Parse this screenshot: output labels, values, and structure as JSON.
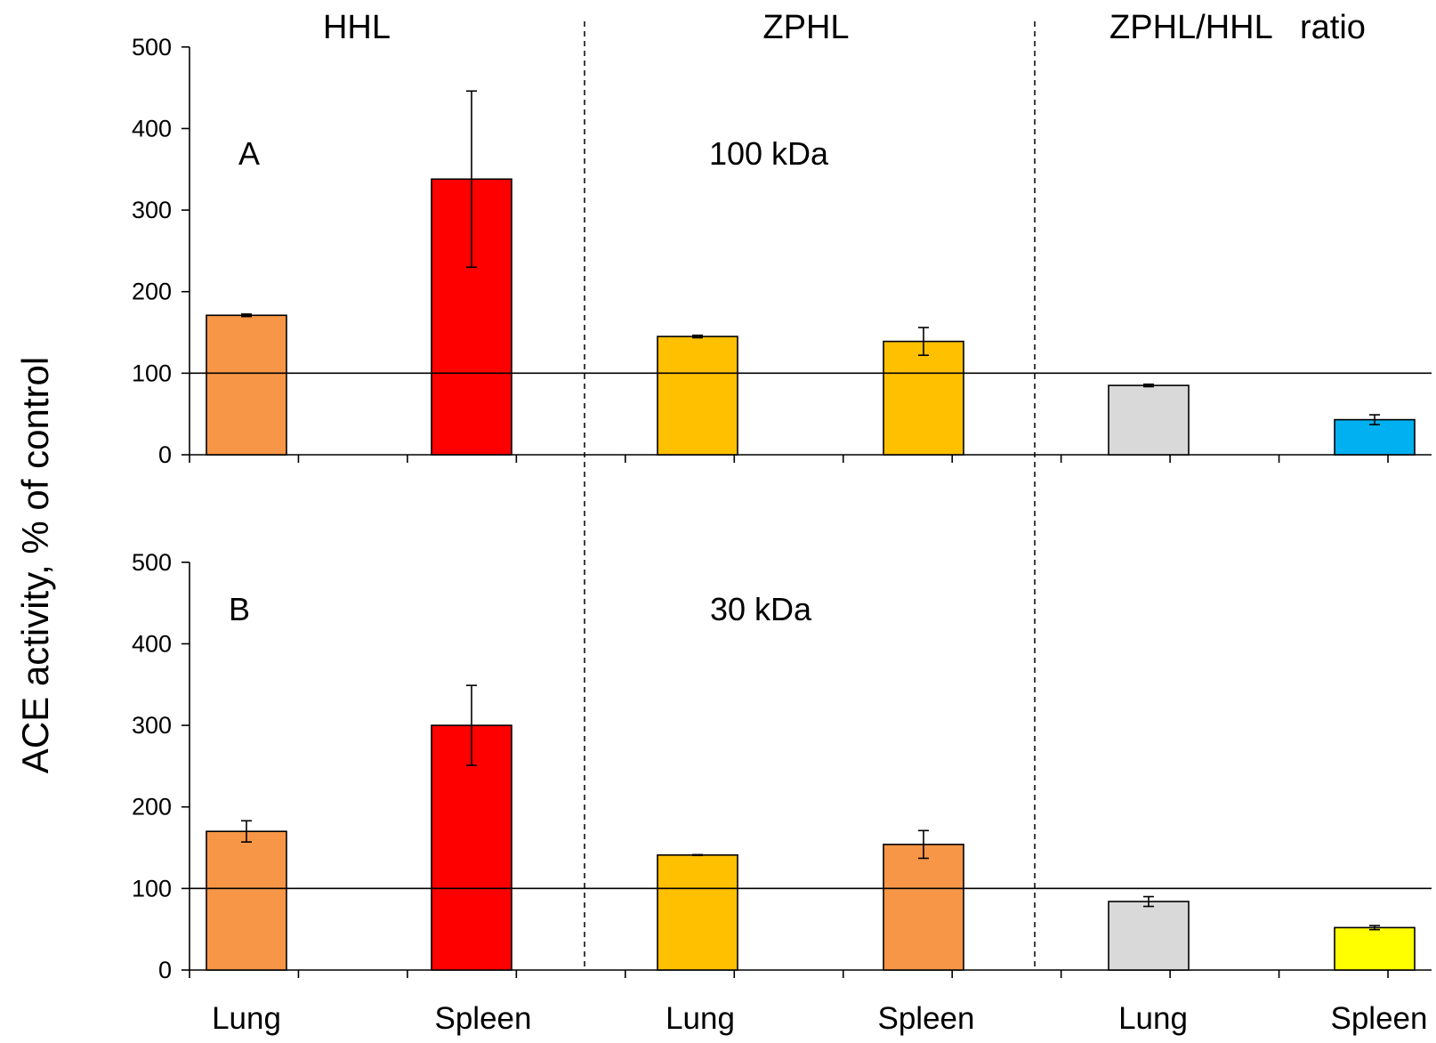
{
  "chart_data": {
    "type": "bar",
    "ylabel": "ACE activity, % of control",
    "group_labels": [
      "HHL",
      "ZPHL",
      "ZPHL/HHL   ratio"
    ],
    "categories": [
      "Lung",
      "Spleen",
      "Lung",
      "Spleen",
      "Lung",
      "Spleen"
    ],
    "ylim": [
      0,
      500
    ],
    "yticks": [
      0,
      100,
      200,
      300,
      400,
      500
    ],
    "reference_line": 100,
    "grid": false,
    "panels": [
      {
        "label": "A",
        "annotation": "100 kDa",
        "values": [
          171,
          338,
          145,
          139,
          85,
          43
        ],
        "errors": [
          1.5,
          108,
          1.5,
          17,
          1.5,
          6
        ],
        "colors": [
          "#f79646",
          "#ff0000",
          "#ffc000",
          "#ffc000",
          "#d9d9d9",
          "#00b0f0"
        ]
      },
      {
        "label": "B",
        "annotation": "30 kDa",
        "values": [
          170,
          300,
          141,
          154,
          84,
          52
        ],
        "errors": [
          13,
          49,
          0.5,
          17,
          6,
          2.5
        ],
        "colors": [
          "#f79646",
          "#ff0000",
          "#ffc000",
          "#f79646",
          "#d9d9d9",
          "#ffff00"
        ]
      }
    ]
  }
}
